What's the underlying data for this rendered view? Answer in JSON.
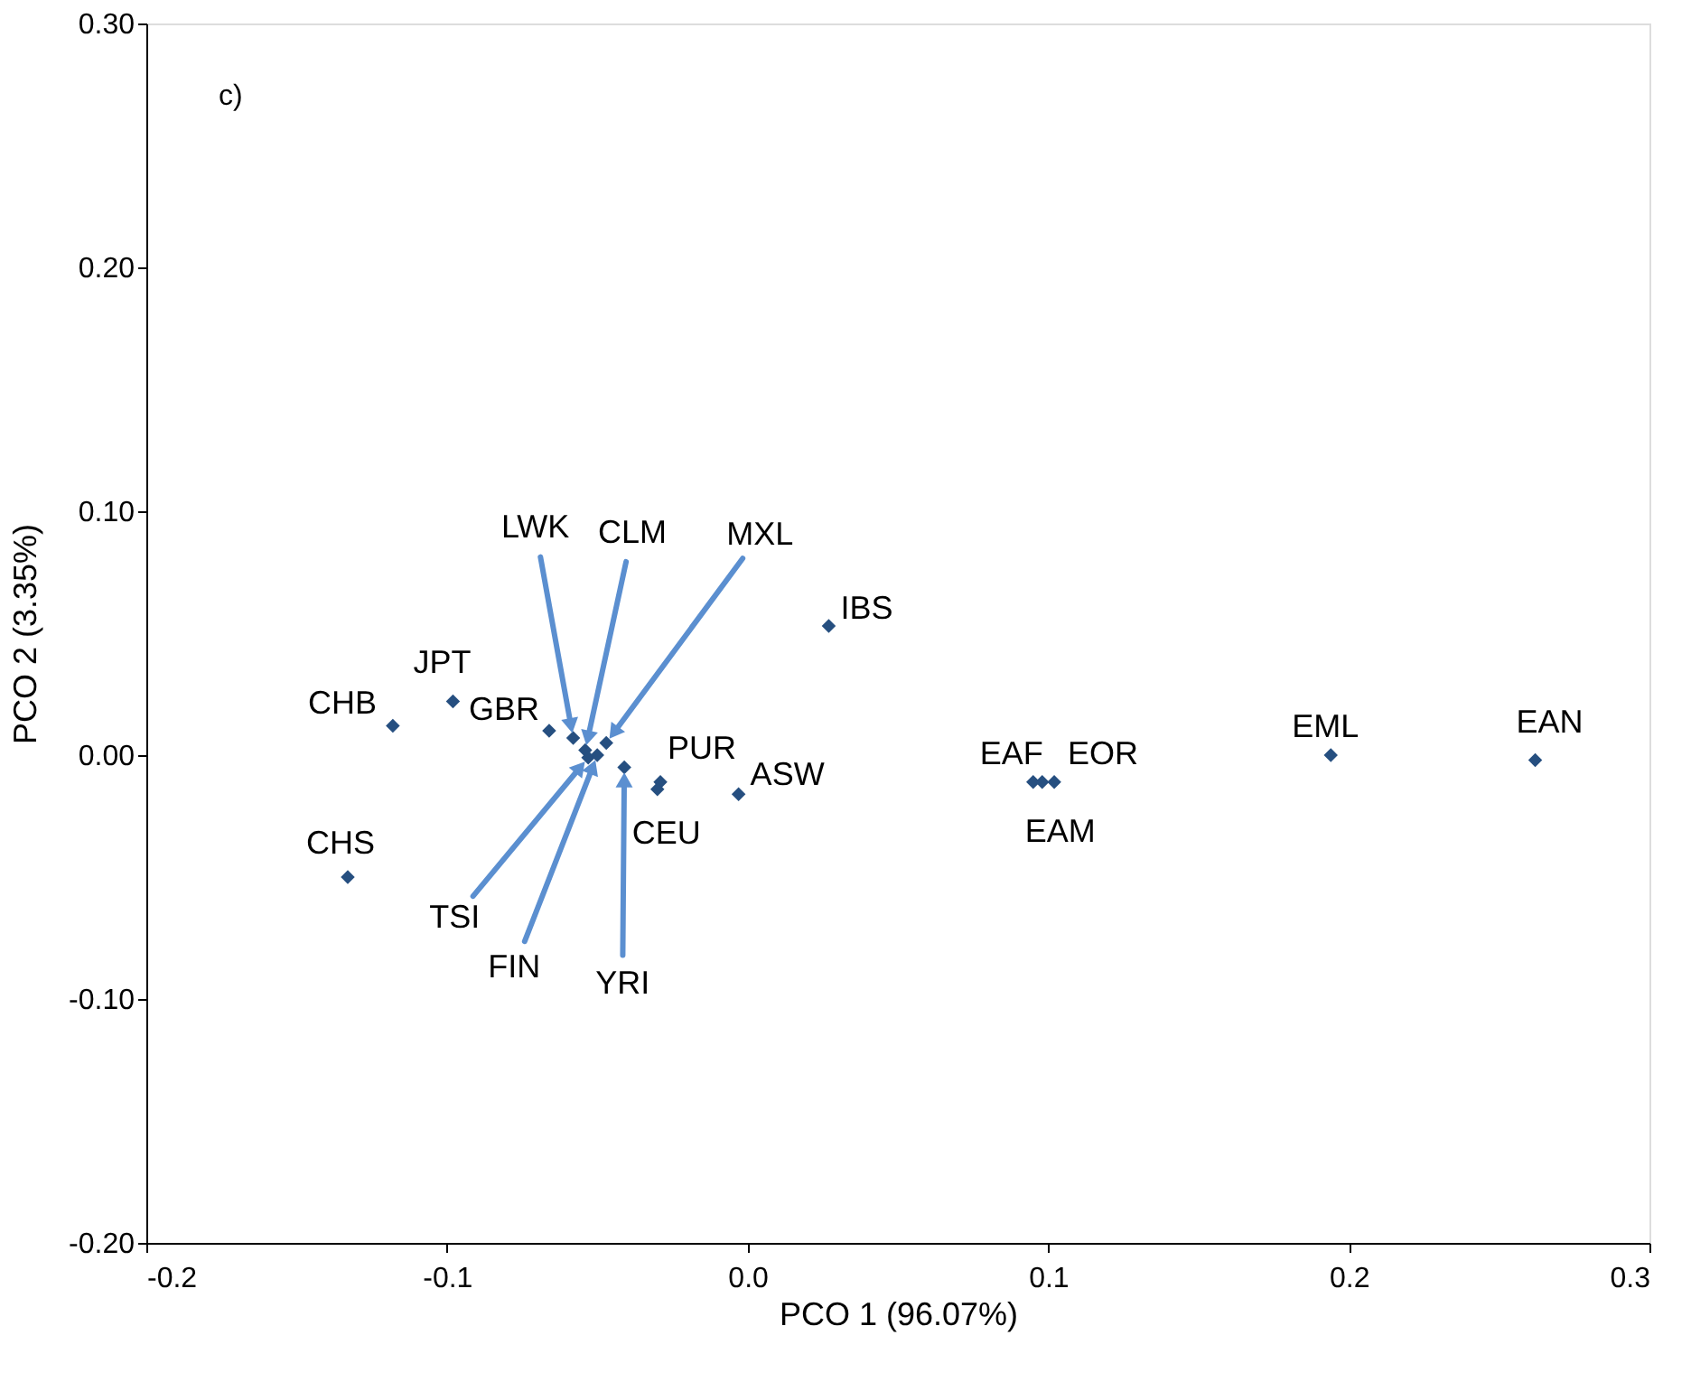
{
  "chart_data": {
    "type": "scatter",
    "xlabel": "PCO 1 (96.07%)",
    "ylabel": "PCO 2 (3.35%)",
    "xlim": [
      -0.2,
      0.3
    ],
    "ylim": [
      -0.2,
      0.3
    ],
    "xticks": [
      {
        "value": -0.2,
        "label": "-0.2"
      },
      {
        "value": -0.1,
        "label": "-0.1"
      },
      {
        "value": 0,
        "label": "0.0"
      },
      {
        "value": 0.1,
        "label": "0.1"
      },
      {
        "value": 0.2,
        "label": "0.2"
      },
      {
        "value": 0.3,
        "label": "0.3"
      }
    ],
    "yticks": [
      {
        "value": -0.2,
        "label": "-0.20"
      },
      {
        "value": -0.1,
        "label": "-0.10"
      },
      {
        "value": 0,
        "label": "0.00"
      },
      {
        "value": 0.1,
        "label": "0.10"
      },
      {
        "value": 0.2,
        "label": "0.20"
      },
      {
        "value": 0.3,
        "label": "0.30"
      }
    ],
    "grid": false,
    "marker": "diamond",
    "series": [
      {
        "color": "#264f80",
        "x": [
          -0.118,
          -0.098,
          -0.066,
          -0.058,
          -0.054,
          -0.047,
          -0.053,
          -0.05,
          -0.041,
          -0.029,
          -0.03,
          -0.003,
          0.027,
          -0.133,
          0.095,
          0.102,
          0.098,
          0.194,
          0.262
        ],
        "values": [
          0.012,
          0.022,
          0.01,
          0.007,
          0.002,
          0.005,
          -0.001,
          0.0,
          -0.005,
          -0.011,
          -0.014,
          -0.016,
          0.053,
          -0.05,
          -0.011,
          -0.011,
          -0.011,
          0.0,
          -0.002
        ]
      }
    ],
    "annotations": [
      "c)",
      {
        "text": "CHB",
        "x": -0.118,
        "y": 0.012
      },
      {
        "text": "JPT",
        "x": -0.098,
        "y": 0.022
      },
      {
        "text": "GBR",
        "x": -0.066,
        "y": 0.01
      },
      {
        "text": "LWK",
        "x": -0.058,
        "y": 0.007
      },
      {
        "text": "CLM",
        "x": -0.054,
        "y": 0.002
      },
      {
        "text": "MXL",
        "x": -0.047,
        "y": 0.005
      },
      {
        "text": "TSI",
        "x": -0.053,
        "y": -0.001
      },
      {
        "text": "FIN",
        "x": -0.05,
        "y": 0.0
      },
      {
        "text": "YRI",
        "x": -0.041,
        "y": -0.005
      },
      {
        "text": "PUR",
        "x": -0.029,
        "y": -0.011
      },
      {
        "text": "CEU",
        "x": -0.03,
        "y": -0.014
      },
      {
        "text": "ASW",
        "x": -0.003,
        "y": -0.016
      },
      {
        "text": "IBS",
        "x": 0.027,
        "y": 0.053
      },
      {
        "text": "CHS",
        "x": -0.133,
        "y": -0.05
      },
      {
        "text": "EAF",
        "x": 0.095,
        "y": -0.011
      },
      {
        "text": "EOR",
        "x": 0.102,
        "y": -0.011
      },
      {
        "text": "EAM",
        "x": 0.098,
        "y": -0.011
      },
      {
        "text": "EML",
        "x": 0.194,
        "y": 0.0
      },
      {
        "text": "EAN",
        "x": 0.262,
        "y": -0.002
      }
    ]
  }
}
